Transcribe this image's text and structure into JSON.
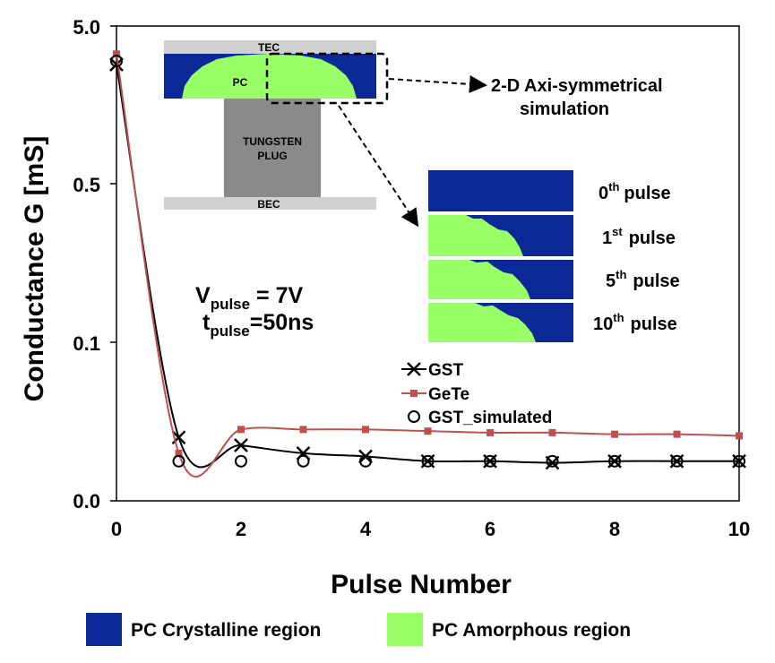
{
  "chart_data": {
    "type": "line",
    "xlabel": "Pulse Number",
    "ylabel": "Conductance G [mS]",
    "x_ticks": [
      "0",
      "2",
      "4",
      "6",
      "8",
      "10"
    ],
    "y_ticks": [
      "5.0",
      "0.5",
      "0.1",
      "0.0"
    ],
    "xlim": [
      0,
      10
    ],
    "y_scale": "log-like (non-linear), tick labels 0.0, 0.1, 0.5, 5.0",
    "grid": false,
    "legend_position": "inside-bottom-center",
    "series": [
      {
        "name": "GST",
        "marker": "x",
        "color": "#000000",
        "x": [
          0,
          1,
          2,
          3,
          4,
          5,
          6,
          7,
          8,
          9,
          10
        ],
        "y": [
          3.9,
          0.04,
          0.035,
          0.03,
          0.028,
          0.025,
          0.025,
          0.024,
          0.025,
          0.025,
          0.025
        ]
      },
      {
        "name": "GeTe",
        "marker": "square",
        "color": "#c0504d",
        "x": [
          0,
          1,
          2,
          3,
          4,
          5,
          6,
          7,
          8,
          9,
          10
        ],
        "y": [
          4.2,
          0.03,
          0.045,
          0.045,
          0.045,
          0.044,
          0.043,
          0.043,
          0.042,
          0.042,
          0.041
        ]
      },
      {
        "name": "GST_simulated",
        "marker": "open-circle",
        "color": "#000000",
        "x": [
          0,
          1,
          2,
          3,
          4,
          5,
          6,
          7,
          8,
          9,
          10
        ],
        "y": [
          4.0,
          0.025,
          0.025,
          0.025,
          0.025,
          0.025,
          0.025,
          0.025,
          0.025,
          0.025,
          0.025
        ]
      }
    ],
    "annotations": {
      "v_main": "V",
      "v_sub": "pulse",
      "v_value": " = 7V",
      "t_main": "t",
      "t_sub": "pulse",
      "t_value": "=50ns",
      "arrow_label_line1": "2-D Axi-symmetrical",
      "arrow_label_line2": "simulation"
    },
    "device_inset": {
      "top_electrode": "TEC",
      "phase_change": "PC",
      "plug_line1": "TUNGSTEN",
      "plug_line2": "PLUG",
      "bottom_electrode": "BEC"
    },
    "pulse_panels": [
      {
        "num": "0",
        "sup": "th",
        "word": "pulse",
        "amorphous_fraction": 0.0
      },
      {
        "num": "1",
        "sup": "st",
        "word": "pulse",
        "amorphous_fraction": 0.4
      },
      {
        "num": "5",
        "sup": "th",
        "word": "pulse",
        "amorphous_fraction": 0.45
      },
      {
        "num": "10",
        "sup": "th",
        "word": "pulse",
        "amorphous_fraction": 0.5
      }
    ],
    "region_legend": [
      {
        "label": "PC Crystalline region",
        "color": "#0a2896"
      },
      {
        "label": "PC Amorphous region",
        "color": "#99ff66"
      }
    ]
  }
}
